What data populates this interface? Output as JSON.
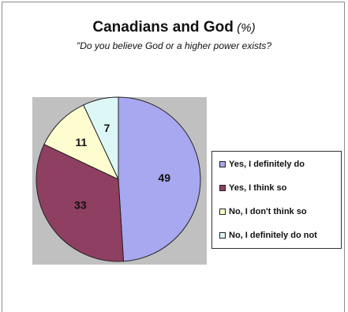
{
  "chart_data": {
    "type": "pie",
    "title": "Canadians and God",
    "title_unit": "(%)",
    "subtitle": "\"Do you believe God or a higher power exists?",
    "slices": [
      {
        "label": "Yes, I definitely do",
        "value": 49,
        "color": "#a8a8f0"
      },
      {
        "label": "Yes, I think so",
        "value": 33,
        "color": "#8f3f62"
      },
      {
        "label": "No, I don't think so",
        "value": 11,
        "color": "#fdfdcf"
      },
      {
        "label": "No, I definitely do not",
        "value": 7,
        "color": "#ddf7f7"
      }
    ],
    "start_angle_deg": 0,
    "direction": "clockwise",
    "legend_position": "right",
    "plot_background": "#c0c0c0"
  }
}
